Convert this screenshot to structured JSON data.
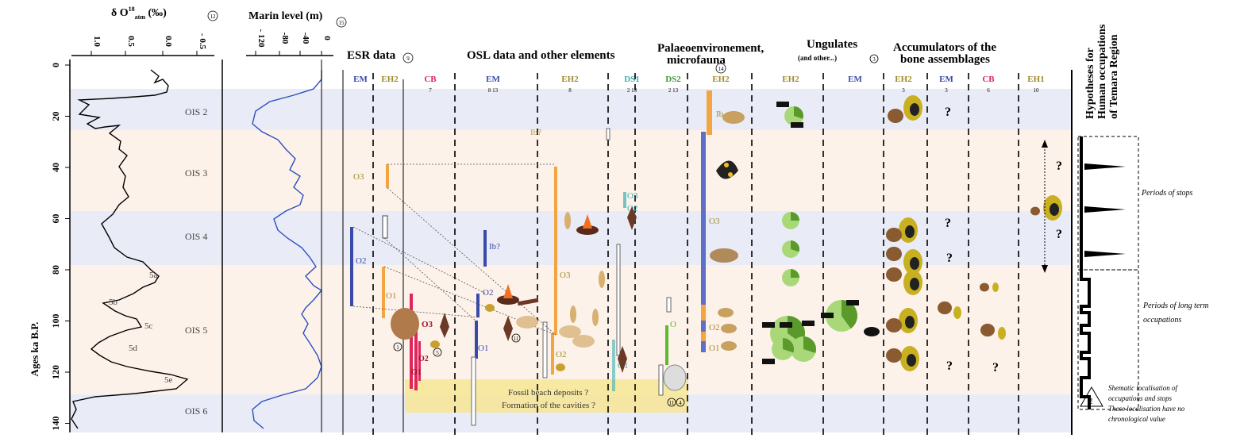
{
  "axis": {
    "y_label": "Ages ka B.P.",
    "y_ticks": [
      "0",
      "20",
      "40",
      "60",
      "80",
      "100",
      "120",
      "140"
    ],
    "delta_title": "δ O",
    "delta_sup": "18",
    "delta_sub": "atm",
    "delta_unit": "(‰)",
    "delta_ref": "12",
    "delta_ticks": [
      "1.0",
      "0.5",
      "0.0",
      "- 0.5"
    ],
    "marine_title": "Marin level (m)",
    "marine_ref": "15",
    "marine_ticks": [
      "- 120",
      "-80",
      "-40",
      "0"
    ]
  },
  "ois": {
    "labels": [
      "OIS 2",
      "OIS 3",
      "OIS 4",
      "OIS 5",
      "OIS 6"
    ],
    "substages": [
      "5a",
      "5b",
      "5c",
      "5d",
      "5e"
    ]
  },
  "headers": {
    "esr": "ESR data",
    "esr_ref": "9",
    "osl": "OSL data and other elements",
    "palaeo_line1": "Palaeoenvironement,",
    "palaeo_line2": "microfauna",
    "palaeo_ref": "14",
    "ungulates": "Ungulates",
    "ungulates_sub": "(and other...)",
    "ungulates_ref": "3",
    "accum_line1": "Accumulators of the",
    "accum_line2": "bone assemblages",
    "hyp_line1": "Hypotheses for",
    "hyp_line2": "Human occupations",
    "hyp_line3": "of Temara Region"
  },
  "columns": [
    {
      "label": "EM",
      "color": "#3a4aa8"
    },
    {
      "label": "EH2",
      "color": "#a08a2a"
    },
    {
      "label": "CB",
      "color": "#e0245e",
      "ref": "7"
    },
    {
      "label": "EM",
      "color": "#3a4aa8",
      "ref": "8 13"
    },
    {
      "label": "EH2",
      "color": "#a08a2a",
      "ref": "8"
    },
    {
      "label": "DS1",
      "color": "#3ab0b0",
      "ref": "2 13"
    },
    {
      "label": "DS2",
      "color": "#3a9a3a",
      "ref": "2 13"
    },
    {
      "label": "EH2",
      "color": "#a08a2a"
    },
    {
      "label": "EH2",
      "color": "#a08a2a"
    },
    {
      "label": "EM",
      "color": "#3a4aa8"
    },
    {
      "label": "EH2",
      "color": "#a08a2a",
      "ref": "3"
    },
    {
      "label": "EM",
      "color": "#3a4aa8",
      "ref": "3"
    },
    {
      "label": "CB",
      "color": "#e0245e",
      "ref": "6"
    },
    {
      "label": "EH1",
      "color": "#a08a2a",
      "ref": "10"
    }
  ],
  "bar_labels": {
    "esr_o3": "O3",
    "esr_o2": "O2",
    "esr_o1": "O1",
    "cb_o3": "O3",
    "cb_o2": "O2",
    "cb_o1": "O1",
    "osl_ib": "Ib?",
    "osl_o2": "O2",
    "osl_o1": "O1",
    "osl_ib2": "Ib?",
    "osl_o3": "O3",
    "osl_o2b": "O2",
    "ds1_o3": "O3",
    "ds1_o2": "O2",
    "ds1_o1": "O1",
    "ds2_o": "O",
    "pal_ib": "Ib",
    "pal_o3": "O3",
    "pal_o2": "O2",
    "pal_o1": "O1"
  },
  "notes": {
    "fossil_beach": "Fossil beach deposits ?",
    "cavities": "Formation of the cavities ?",
    "periods_stops": "Periods of stops",
    "periods_long": "Periods of long term",
    "periods_long2": "occupations",
    "warning_line1": "Shematic localisation of",
    "warning_line2": "occupations and stops",
    "warning_line3": "These localisation have no",
    "warning_line4": "chronological value",
    "warning_symbol": "!",
    "question": "?"
  },
  "circle_refs": [
    "1",
    "5",
    "11",
    "11",
    "4"
  ],
  "colors": {
    "em": "#3a4aa8",
    "eh2": "#f2a541",
    "cb": "#e0245e",
    "ds1": "#3ab0b0",
    "ds2": "#5fb830",
    "band_cool": "#e9ecf6",
    "band_warm": "#fdf2ea",
    "yellow": "#f6e79a",
    "marine_line": "#2a4fbf"
  }
}
